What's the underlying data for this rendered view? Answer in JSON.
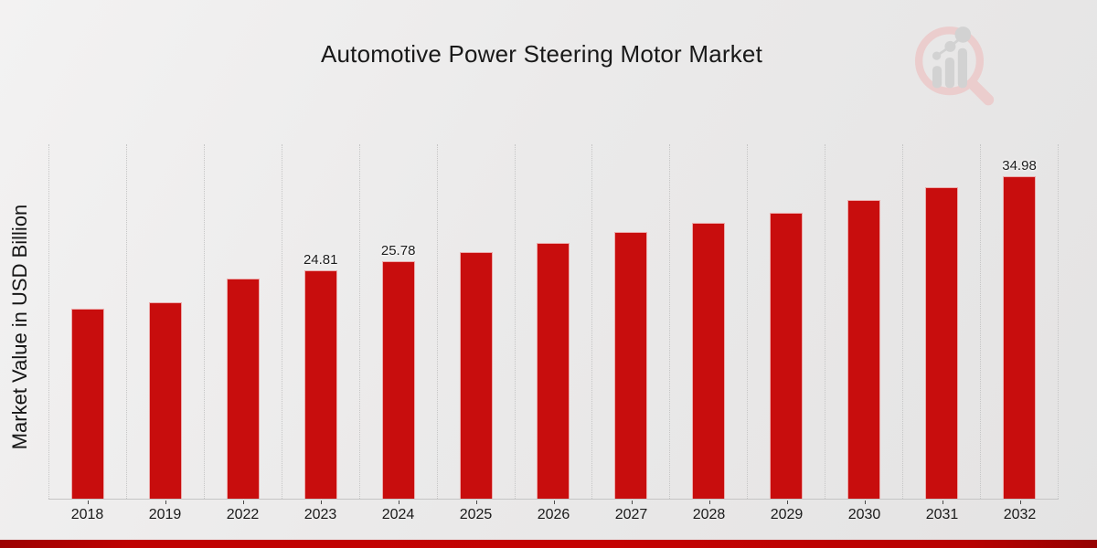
{
  "title": "Automotive Power Steering Motor Market",
  "y_axis_label": "Market Value in USD Billion",
  "watermark_icon": "magnifier-bar-chart-logo-icon",
  "colors": {
    "bar": "#c80d0d",
    "footer_bar": "#c40303",
    "gridline": "#c6c6c6",
    "watermark_ring": "#ecc9c9",
    "watermark_bars": "#cfcfcf"
  },
  "chart_data": {
    "type": "bar",
    "title": "Automotive Power Steering Motor Market",
    "xlabel": "",
    "ylabel": "Market Value in USD Billion",
    "categories": [
      "2018",
      "2019",
      "2022",
      "2023",
      "2024",
      "2025",
      "2026",
      "2027",
      "2028",
      "2029",
      "2030",
      "2031",
      "2032"
    ],
    "values": [
      20.6,
      21.3,
      23.9,
      24.81,
      25.78,
      26.8,
      27.8,
      29.0,
      30.0,
      31.1,
      32.4,
      33.8,
      34.98
    ],
    "bar_labels": [
      "",
      "",
      "",
      "24.81",
      "25.78",
      "",
      "",
      "",
      "",
      "",
      "",
      "",
      "34.98"
    ],
    "ylim": [
      0,
      38.6
    ],
    "grid": "vertical-dotted",
    "legend": "none",
    "bar_color": "#c80d0d"
  }
}
